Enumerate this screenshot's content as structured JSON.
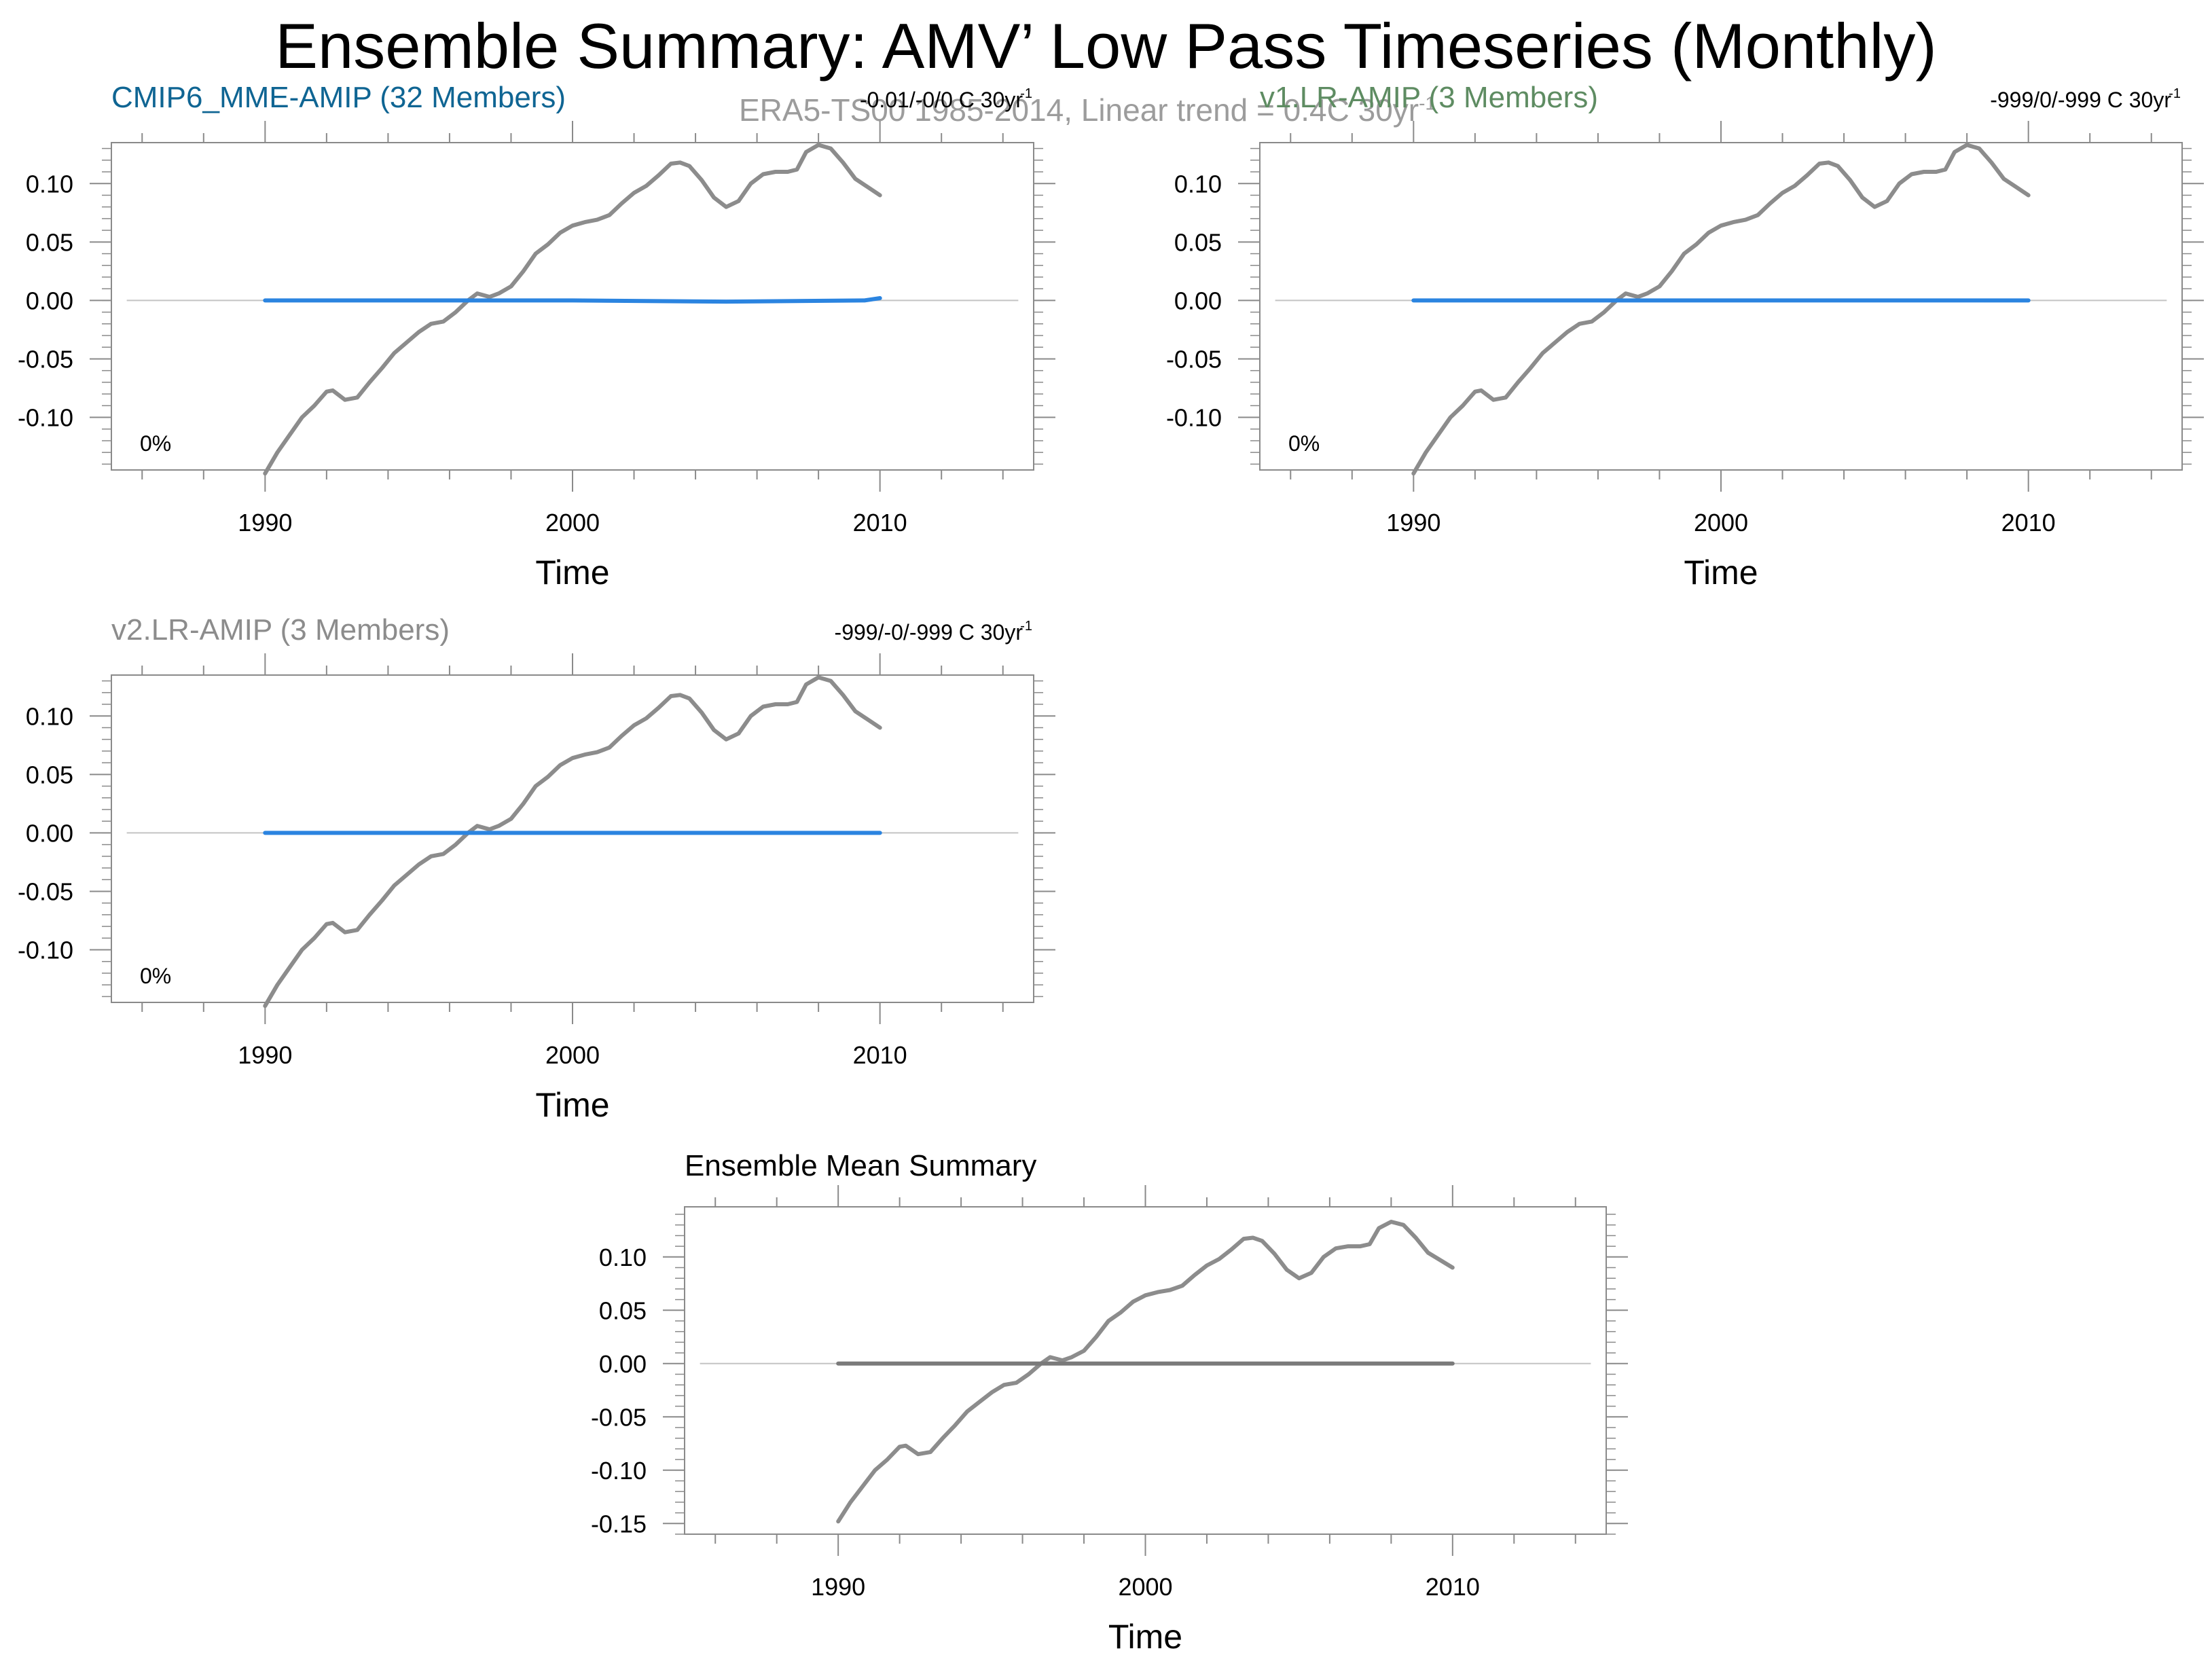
{
  "figure": {
    "title": "Ensemble Summary: AMV’ Low Pass Timeseries (Monthly)",
    "subtitle": "ERA5-TS00 1985-2014, Linear trend = 0.4C 30yr",
    "subtitle_sup": "-1"
  },
  "colors": {
    "observation_line": "#8c8c8c",
    "model_line": "#2b84e0",
    "mean_model_line": "#7a7a7a",
    "zero_line": "#c4c4c4",
    "cmip6_title": "#0f6593",
    "v1_title": "#5e8c62",
    "v2_title": "#8c8c8c"
  },
  "chart_data": [
    {
      "type": "line",
      "panel": "top-left",
      "title": "CMIP6_MME-AMIP (32 Members)",
      "title_color": "#0f6593",
      "trend_label": "-0.01/-0/0 C 30yr",
      "trend_sup": "-1",
      "percent_label": "0%",
      "xlabel": "Time",
      "ylabel": "",
      "xlim": [
        1985,
        2015
      ],
      "ylim": [
        -0.145,
        0.135
      ],
      "xticks": [
        "1990",
        "2000",
        "2010"
      ],
      "yticks": [
        "0.10",
        "0.05",
        "0.00",
        "-0.05",
        "-0.10"
      ],
      "zero_line": true,
      "series": [
        {
          "role": "observed",
          "x": [
            1990.0,
            1990.4,
            1990.8,
            1991.2,
            1991.6,
            1992.0,
            1992.2,
            1992.6,
            1993.0,
            1993.4,
            1993.8,
            1994.2,
            1994.6,
            1995.0,
            1995.4,
            1995.8,
            1996.2,
            1996.6,
            1996.9,
            1997.3,
            1997.6,
            1998.0,
            1998.4,
            1998.8,
            1999.2,
            1999.6,
            2000.0,
            2000.4,
            2000.8,
            2001.2,
            2001.6,
            2002.0,
            2002.4,
            2002.8,
            2003.2,
            2003.5,
            2003.8,
            2004.2,
            2004.6,
            2005.0,
            2005.4,
            2005.8,
            2006.2,
            2006.6,
            2007.0,
            2007.3,
            2007.6,
            2008.0,
            2008.4,
            2008.8,
            2009.2,
            2009.6,
            2010.0
          ],
          "y": [
            -0.148,
            -0.13,
            -0.115,
            -0.1,
            -0.09,
            -0.078,
            -0.077,
            -0.085,
            -0.083,
            -0.07,
            -0.058,
            -0.045,
            -0.036,
            -0.027,
            -0.02,
            -0.018,
            -0.01,
            0.0,
            0.006,
            0.003,
            0.006,
            0.012,
            0.025,
            0.04,
            0.048,
            0.058,
            0.064,
            0.067,
            0.069,
            0.073,
            0.083,
            0.092,
            0.098,
            0.107,
            0.117,
            0.118,
            0.115,
            0.103,
            0.088,
            0.08,
            0.085,
            0.1,
            0.108,
            0.11,
            0.11,
            0.112,
            0.127,
            0.133,
            0.13,
            0.118,
            0.104,
            0.097,
            0.09
          ]
        },
        {
          "role": "model",
          "x": [
            1990,
            1995,
            2000,
            2005,
            2009.5,
            2010
          ],
          "y": [
            0.0,
            0.0,
            0.0,
            -0.001,
            0.0,
            0.002
          ]
        }
      ]
    },
    {
      "type": "line",
      "panel": "top-right",
      "title": "v1.LR-AMIP (3 Members)",
      "title_color": "#5e8c62",
      "trend_label": "-999/0/-999 C 30yr",
      "trend_sup": "-1",
      "percent_label": "0%",
      "xlabel": "Time",
      "ylabel": "",
      "xlim": [
        1985,
        2015
      ],
      "ylim": [
        -0.145,
        0.135
      ],
      "xticks": [
        "1990",
        "2000",
        "2010"
      ],
      "yticks": [
        "0.10",
        "0.05",
        "0.00",
        "-0.05",
        "-0.10"
      ],
      "zero_line": true,
      "series": [
        {
          "role": "observed",
          "x": [
            1990.0,
            1990.4,
            1990.8,
            1991.2,
            1991.6,
            1992.0,
            1992.2,
            1992.6,
            1993.0,
            1993.4,
            1993.8,
            1994.2,
            1994.6,
            1995.0,
            1995.4,
            1995.8,
            1996.2,
            1996.6,
            1996.9,
            1997.3,
            1997.6,
            1998.0,
            1998.4,
            1998.8,
            1999.2,
            1999.6,
            2000.0,
            2000.4,
            2000.8,
            2001.2,
            2001.6,
            2002.0,
            2002.4,
            2002.8,
            2003.2,
            2003.5,
            2003.8,
            2004.2,
            2004.6,
            2005.0,
            2005.4,
            2005.8,
            2006.2,
            2006.6,
            2007.0,
            2007.3,
            2007.6,
            2008.0,
            2008.4,
            2008.8,
            2009.2,
            2009.6,
            2010.0
          ],
          "y": [
            -0.148,
            -0.13,
            -0.115,
            -0.1,
            -0.09,
            -0.078,
            -0.077,
            -0.085,
            -0.083,
            -0.07,
            -0.058,
            -0.045,
            -0.036,
            -0.027,
            -0.02,
            -0.018,
            -0.01,
            0.0,
            0.006,
            0.003,
            0.006,
            0.012,
            0.025,
            0.04,
            0.048,
            0.058,
            0.064,
            0.067,
            0.069,
            0.073,
            0.083,
            0.092,
            0.098,
            0.107,
            0.117,
            0.118,
            0.115,
            0.103,
            0.088,
            0.08,
            0.085,
            0.1,
            0.108,
            0.11,
            0.11,
            0.112,
            0.127,
            0.133,
            0.13,
            0.118,
            0.104,
            0.097,
            0.09
          ]
        },
        {
          "role": "model",
          "x": [
            1990,
            2010
          ],
          "y": [
            0.0,
            0.0
          ]
        }
      ]
    },
    {
      "type": "line",
      "panel": "middle-left",
      "title": "v2.LR-AMIP (3 Members)",
      "title_color": "#8c8c8c",
      "trend_label": "-999/-0/-999 C 30yr",
      "trend_sup": "-1",
      "percent_label": "0%",
      "xlabel": "Time",
      "ylabel": "",
      "xlim": [
        1985,
        2015
      ],
      "ylim": [
        -0.145,
        0.135
      ],
      "xticks": [
        "1990",
        "2000",
        "2010"
      ],
      "yticks": [
        "0.10",
        "0.05",
        "0.00",
        "-0.05",
        "-0.10"
      ],
      "zero_line": true,
      "series": [
        {
          "role": "observed",
          "x": [
            1990.0,
            1990.4,
            1990.8,
            1991.2,
            1991.6,
            1992.0,
            1992.2,
            1992.6,
            1993.0,
            1993.4,
            1993.8,
            1994.2,
            1994.6,
            1995.0,
            1995.4,
            1995.8,
            1996.2,
            1996.6,
            1996.9,
            1997.3,
            1997.6,
            1998.0,
            1998.4,
            1998.8,
            1999.2,
            1999.6,
            2000.0,
            2000.4,
            2000.8,
            2001.2,
            2001.6,
            2002.0,
            2002.4,
            2002.8,
            2003.2,
            2003.5,
            2003.8,
            2004.2,
            2004.6,
            2005.0,
            2005.4,
            2005.8,
            2006.2,
            2006.6,
            2007.0,
            2007.3,
            2007.6,
            2008.0,
            2008.4,
            2008.8,
            2009.2,
            2009.6,
            2010.0
          ],
          "y": [
            -0.148,
            -0.13,
            -0.115,
            -0.1,
            -0.09,
            -0.078,
            -0.077,
            -0.085,
            -0.083,
            -0.07,
            -0.058,
            -0.045,
            -0.036,
            -0.027,
            -0.02,
            -0.018,
            -0.01,
            0.0,
            0.006,
            0.003,
            0.006,
            0.012,
            0.025,
            0.04,
            0.048,
            0.058,
            0.064,
            0.067,
            0.069,
            0.073,
            0.083,
            0.092,
            0.098,
            0.107,
            0.117,
            0.118,
            0.115,
            0.103,
            0.088,
            0.08,
            0.085,
            0.1,
            0.108,
            0.11,
            0.11,
            0.112,
            0.127,
            0.133,
            0.13,
            0.118,
            0.104,
            0.097,
            0.09
          ]
        },
        {
          "role": "model",
          "x": [
            1990,
            2010
          ],
          "y": [
            0.0,
            0.0
          ]
        }
      ]
    },
    {
      "type": "line",
      "panel": "bottom",
      "title": "Ensemble Mean Summary",
      "title_color": "#000000",
      "trend_label": "",
      "trend_sup": "",
      "percent_label": "",
      "xlabel": "Time",
      "ylabel": "",
      "xlim": [
        1985,
        2015
      ],
      "ylim": [
        -0.16,
        0.147
      ],
      "xticks": [
        "1990",
        "2000",
        "2010"
      ],
      "yticks": [
        "0.10",
        "0.05",
        "0.00",
        "-0.05",
        "-0.10",
        "-0.15"
      ],
      "zero_line": true,
      "series": [
        {
          "role": "observed",
          "x": [
            1990.0,
            1990.4,
            1990.8,
            1991.2,
            1991.6,
            1992.0,
            1992.2,
            1992.6,
            1993.0,
            1993.4,
            1993.8,
            1994.2,
            1994.6,
            1995.0,
            1995.4,
            1995.8,
            1996.2,
            1996.6,
            1996.9,
            1997.3,
            1997.6,
            1998.0,
            1998.4,
            1998.8,
            1999.2,
            1999.6,
            2000.0,
            2000.4,
            2000.8,
            2001.2,
            2001.6,
            2002.0,
            2002.4,
            2002.8,
            2003.2,
            2003.5,
            2003.8,
            2004.2,
            2004.6,
            2005.0,
            2005.4,
            2005.8,
            2006.2,
            2006.6,
            2007.0,
            2007.3,
            2007.6,
            2008.0,
            2008.4,
            2008.8,
            2009.2,
            2009.6,
            2010.0
          ],
          "y": [
            -0.148,
            -0.13,
            -0.115,
            -0.1,
            -0.09,
            -0.078,
            -0.077,
            -0.085,
            -0.083,
            -0.07,
            -0.058,
            -0.045,
            -0.036,
            -0.027,
            -0.02,
            -0.018,
            -0.01,
            0.0,
            0.006,
            0.003,
            0.006,
            0.012,
            0.025,
            0.04,
            0.048,
            0.058,
            0.064,
            0.067,
            0.069,
            0.073,
            0.083,
            0.092,
            0.098,
            0.107,
            0.117,
            0.118,
            0.115,
            0.103,
            0.088,
            0.08,
            0.085,
            0.1,
            0.108,
            0.11,
            0.11,
            0.112,
            0.127,
            0.133,
            0.13,
            0.118,
            0.104,
            0.097,
            0.09
          ]
        },
        {
          "role": "model",
          "x": [
            1990,
            2010
          ],
          "y": [
            0.0,
            0.0
          ]
        }
      ]
    }
  ]
}
